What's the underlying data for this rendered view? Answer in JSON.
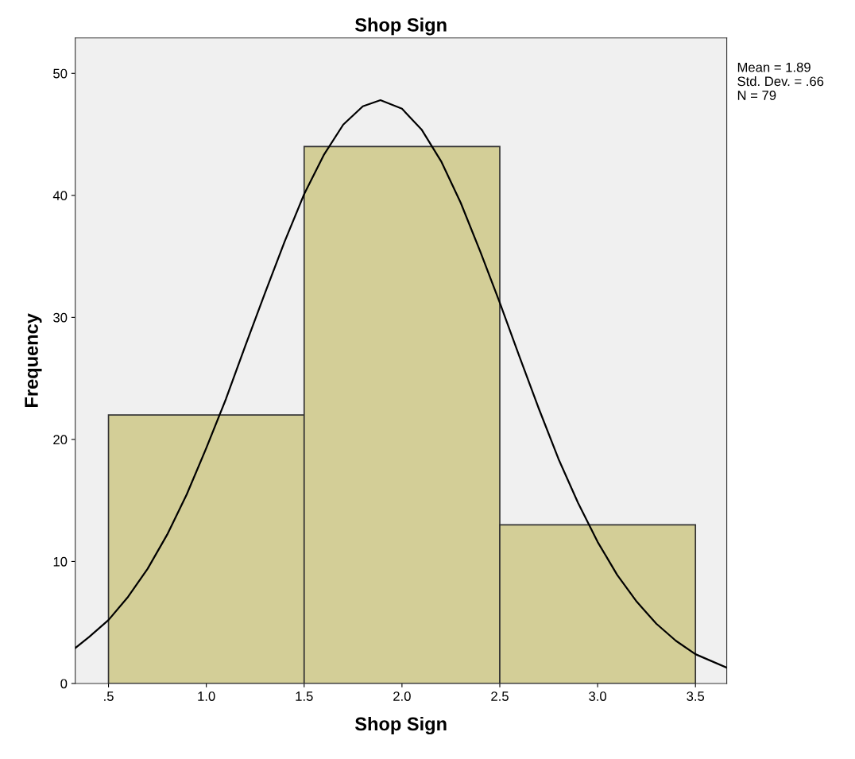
{
  "chart_data": {
    "type": "histogram",
    "title": "Shop Sign",
    "xlabel": "Shop Sign",
    "ylabel": "Frequency",
    "bins": [
      0.5,
      1.5,
      2.5,
      3.5
    ],
    "series": [
      {
        "color": "#d3ce97",
        "values": [
          22,
          44,
          13
        ]
      },
      {
        "type": "line",
        "color": "#000000",
        "x": [
          0.33,
          0.4,
          0.5,
          0.6,
          0.7,
          0.8,
          0.9,
          1.0,
          1.1,
          1.2,
          1.3,
          1.4,
          1.5,
          1.6,
          1.7,
          1.8,
          1.89,
          2.0,
          2.1,
          2.2,
          2.3,
          2.4,
          2.5,
          2.6,
          2.7,
          2.8,
          2.9,
          3.0,
          3.1,
          3.2,
          3.3,
          3.4,
          3.5,
          3.66
        ],
        "values": [
          2.9,
          3.8,
          5.2,
          7.1,
          9.4,
          12.2,
          15.5,
          19.3,
          23.3,
          27.7,
          32.0,
          36.2,
          40.1,
          43.3,
          45.8,
          47.3,
          47.8,
          47.1,
          45.4,
          42.8,
          39.4,
          35.4,
          31.2,
          26.8,
          22.5,
          18.4,
          14.8,
          11.6,
          8.9,
          6.7,
          4.9,
          3.5,
          2.4,
          1.3
        ]
      }
    ],
    "xlim": [
      0.33,
      3.66
    ],
    "ylim": [
      0,
      52.9
    ],
    "xticks": [
      {
        "value": 0.5,
        "label": ".5"
      },
      {
        "value": 1.0,
        "label": "1.0"
      },
      {
        "value": 1.5,
        "label": "1.5"
      },
      {
        "value": 2.0,
        "label": "2.0"
      },
      {
        "value": 2.5,
        "label": "2.5"
      },
      {
        "value": 3.0,
        "label": "3.0"
      },
      {
        "value": 3.5,
        "label": "3.5"
      }
    ],
    "yticks": [
      0,
      10,
      20,
      30,
      40,
      50
    ],
    "annotations": [
      "Mean = 1.89",
      "Std. Dev. = .66",
      "N = 79"
    ],
    "grid": false,
    "legend": false
  }
}
